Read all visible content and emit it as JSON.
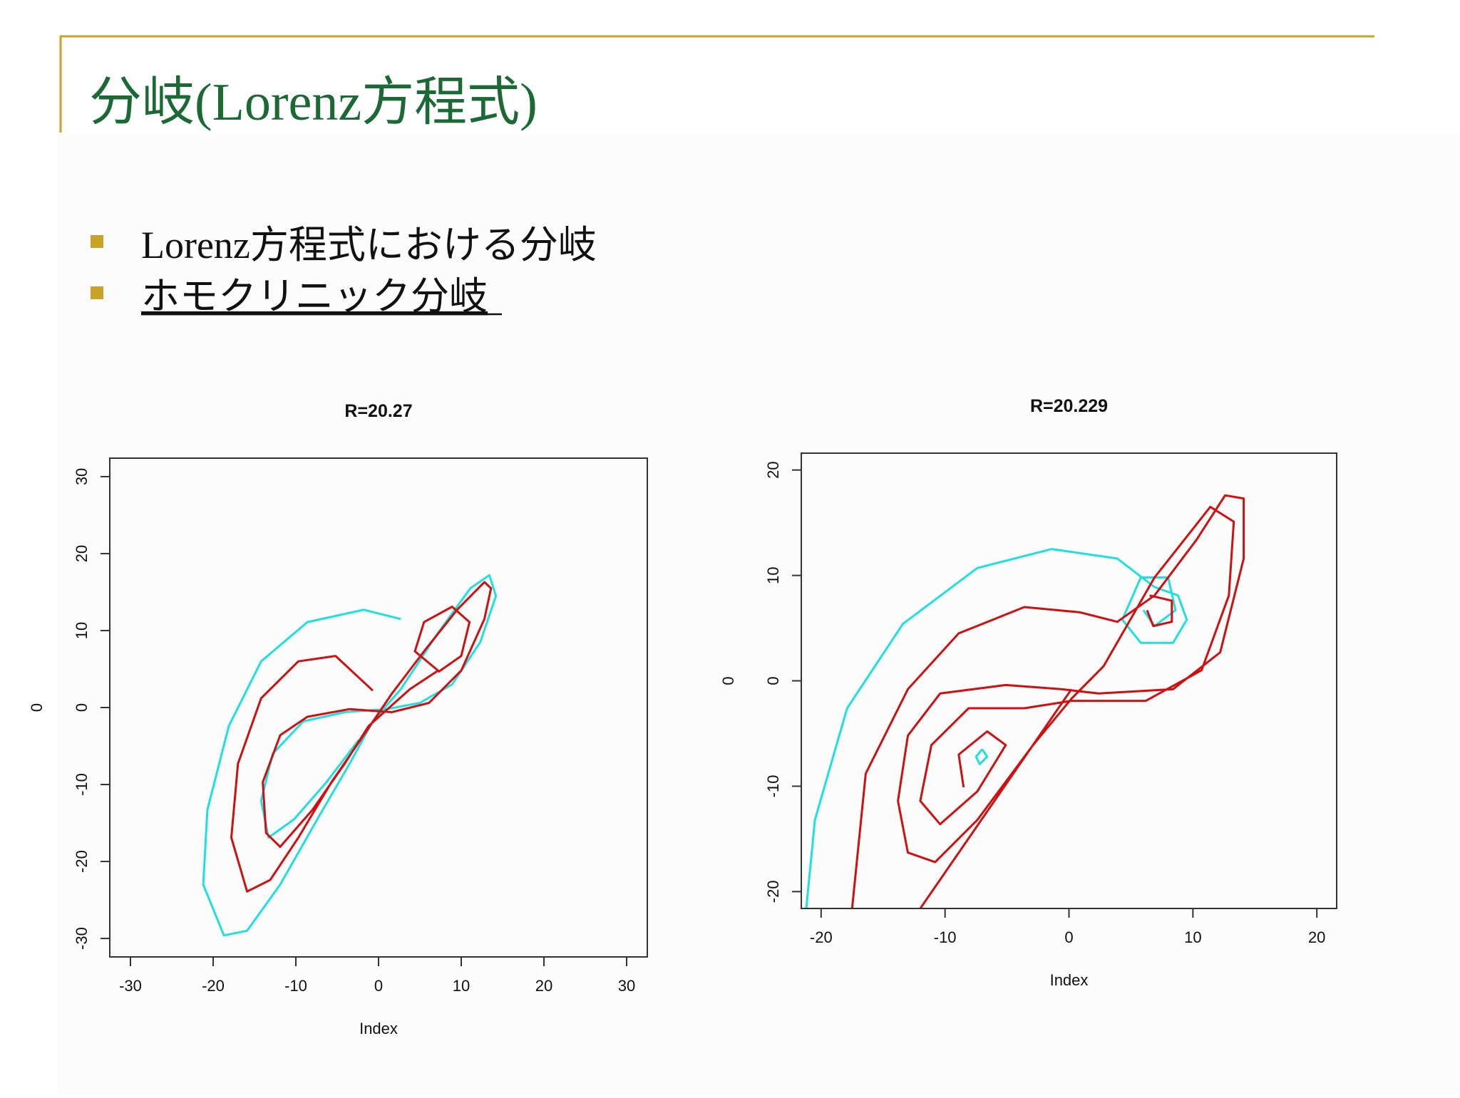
{
  "slide": {
    "title": "分岐(Lorenz方程式)",
    "bullets": [
      "Lorenz方程式における分岐",
      "ホモクリニック分岐"
    ]
  },
  "chart_data": [
    {
      "type": "line",
      "title": "R=20.27",
      "xlabel": "Index",
      "ylabel": "0",
      "xlim": [
        -32.5,
        32.5
      ],
      "ylim": [
        -32.4,
        32.4
      ],
      "xticks": [
        -30,
        -20,
        -10,
        0,
        10,
        20,
        30
      ],
      "yticks": [
        -30,
        -20,
        -10,
        0,
        10,
        20,
        30
      ],
      "series": [
        {
          "color": "#1fe0e0",
          "x": [
            2.7,
            -1.8,
            -8.6,
            -14.2,
            -18.1,
            -20.7,
            -21.2,
            -18.7,
            -15.9,
            -11.9,
            -7.4,
            -3.5,
            -0.7,
            2.7,
            7.2,
            11.1,
            13.4,
            14.2,
            12.3,
            8.9,
            5.0,
            1.0,
            -4.1,
            -9.1,
            -12.8,
            -14.2,
            -13.3,
            -10.2,
            -6.3,
            -2.4
          ],
          "values": [
            11.5,
            12.7,
            11.1,
            6.0,
            -2.4,
            -13.3,
            -23.0,
            -29.6,
            -29.0,
            -23.0,
            -14.5,
            -7.3,
            -1.8,
            2.4,
            9.7,
            15.5,
            17.2,
            14.5,
            8.5,
            3.0,
            0.6,
            -0.2,
            -0.6,
            -1.8,
            -6.0,
            -12.1,
            -16.9,
            -14.5,
            -9.7,
            -4.2
          ]
        },
        {
          "color": "#d01010",
          "x": [
            -0.7,
            -5.2,
            -9.7,
            -14.2,
            -17.0,
            -17.8,
            -15.9,
            -13.1,
            -9.7,
            -5.7,
            -1.8,
            1.6,
            5.5,
            9.5,
            12.8,
            13.6,
            12.8,
            10.0,
            6.1,
            1.6,
            -3.5,
            -8.6,
            -11.9,
            -14.0,
            -13.6,
            -11.9,
            -8.0,
            -4.1,
            -1.2,
            3.8,
            7.2,
            4.4,
            5.5,
            8.9,
            11.0,
            10.0,
            7.2
          ],
          "values": [
            2.2,
            6.7,
            6.0,
            1.2,
            -7.3,
            -16.9,
            -23.9,
            -22.4,
            -16.9,
            -9.7,
            -3.6,
            1.8,
            7.3,
            12.7,
            16.3,
            15.5,
            11.5,
            4.8,
            0.6,
            -0.6,
            -0.2,
            -1.2,
            -3.6,
            -9.7,
            -16.3,
            -18.1,
            -13.3,
            -7.3,
            -2.4,
            2.4,
            4.8,
            7.3,
            11.1,
            13.1,
            11.1,
            6.7,
            4.6
          ]
        }
      ]
    },
    {
      "type": "line",
      "title": "R=20.229",
      "xlabel": "Index",
      "ylabel": "0",
      "xlim": [
        -21.6,
        21.6
      ],
      "ylim": [
        -21.6,
        21.6
      ],
      "xticks": [
        -20,
        -10,
        0,
        10,
        20
      ],
      "yticks": [
        -20,
        -10,
        0,
        10,
        20
      ],
      "series": [
        {
          "color": "#1fe0e0",
          "x": [
            -21.2,
            -20.5,
            -17.9,
            -13.4,
            -7.4,
            -1.4,
            3.9,
            6.9,
            8.8,
            9.5,
            8.4,
            5.8,
            4.3,
            5.8,
            8.0,
            8.6,
            6.9,
            6.0,
            null,
            -7.0,
            -7.5,
            -7.2,
            -6.6,
            -7.0
          ],
          "values": [
            -21.6,
            -13.2,
            -2.6,
            5.4,
            10.7,
            12.5,
            11.6,
            8.9,
            8.1,
            5.8,
            3.6,
            3.6,
            5.8,
            9.8,
            9.8,
            6.7,
            5.2,
            6.7,
            null,
            -6.5,
            -7.2,
            -7.9,
            -7.2,
            -6.5
          ]
        },
        {
          "color": "#d01010",
          "x": [
            -17.5,
            -16.4,
            -13.0,
            -8.9,
            -3.6,
            0.9,
            3.9,
            6.9,
            10.3,
            12.6,
            14.1,
            14.1,
            12.2,
            8.4,
            2.4,
            -0.6,
            -5.1,
            -10.4,
            -13.0,
            -13.8,
            -13.0,
            -10.8,
            -7.4,
            -2.9,
            0.2,
            2.8,
            6.9,
            11.4,
            13.3,
            12.9,
            10.7,
            6.2,
            0.2,
            -3.6,
            -8.1,
            -11.1,
            -12.0,
            -10.4,
            -7.4,
            -5.1,
            -6.6,
            -8.9,
            -8.5,
            null,
            6.5,
            8.3,
            8.3,
            6.8,
            6.3,
            null,
            0.2,
            -12.0
          ],
          "values": [
            -21.6,
            -8.8,
            -0.8,
            4.5,
            7.0,
            6.5,
            5.6,
            8.1,
            13.4,
            17.6,
            17.3,
            11.6,
            2.7,
            -0.8,
            -1.2,
            -0.8,
            -0.4,
            -1.2,
            -5.2,
            -11.4,
            -16.3,
            -17.2,
            -13.2,
            -6.1,
            -1.7,
            1.4,
            9.8,
            16.5,
            15.1,
            8.1,
            1.0,
            -1.9,
            -1.9,
            -2.6,
            -2.6,
            -6.1,
            -11.4,
            -13.6,
            -10.5,
            -6.1,
            -4.8,
            -7.0,
            -10.1,
            null,
            8.1,
            7.6,
            5.6,
            5.2,
            6.7,
            null,
            -0.8,
            -21.6
          ]
        }
      ]
    }
  ]
}
